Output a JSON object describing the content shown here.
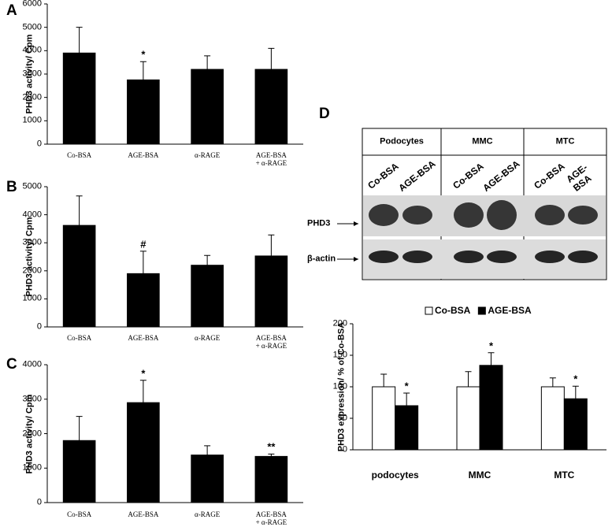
{
  "chart_data": [
    {
      "type": "bar",
      "panel": "A",
      "y_label": "PHD3 activity/ Cpm",
      "categories": [
        "Co-BSA",
        "AGE-BSA",
        "α-RAGE",
        "AGE-BSA\n+ α-RAGE"
      ],
      "series": [
        {
          "color": "#000000",
          "values": [
            3900,
            2750,
            3200,
            3200
          ],
          "errors": [
            1100,
            780,
            580,
            900
          ],
          "annotations": [
            null,
            "*",
            null,
            null
          ]
        }
      ],
      "ylim": [
        0,
        6000
      ],
      "yticks": [
        0,
        1000,
        2000,
        3000,
        4000,
        5000,
        6000
      ]
    },
    {
      "type": "bar",
      "panel": "B",
      "y_label": "PHD3 activity/ Cpm",
      "categories": [
        "Co-BSA",
        "AGE-BSA",
        "α-RAGE",
        "AGE-BSA\n+ α-RAGE"
      ],
      "series": [
        {
          "color": "#000000",
          "values": [
            3620,
            1900,
            2200,
            2530
          ],
          "errors": [
            1050,
            800,
            350,
            750
          ],
          "annotations": [
            null,
            "#",
            null,
            null
          ]
        }
      ],
      "ylim": [
        0,
        5000
      ],
      "yticks": [
        0,
        1000,
        2000,
        3000,
        4000,
        5000
      ]
    },
    {
      "type": "bar",
      "panel": "C",
      "y_label": "PHD3 activity/ Cpm",
      "categories": [
        "Co-BSA",
        "AGE-BSA",
        "α-RAGE",
        "AGE-BSA\n+ α-RAGE"
      ],
      "series": [
        {
          "color": "#000000",
          "values": [
            1800,
            2900,
            1380,
            1340
          ],
          "errors": [
            700,
            650,
            270,
            70
          ],
          "annotations": [
            null,
            "*",
            null,
            "**"
          ]
        }
      ],
      "ylim": [
        0,
        4000
      ],
      "yticks": [
        0,
        1000,
        2000,
        3000,
        4000
      ]
    },
    {
      "type": "bar",
      "panel": "D",
      "y_label": "PHD3 expression/ % of Co-BSA",
      "categories": [
        "podocytes",
        "MMC",
        "MTC"
      ],
      "series": [
        {
          "name": "Co-BSA",
          "color": "#ffffff",
          "values": [
            100,
            100,
            100
          ],
          "errors": [
            20,
            24,
            14
          ],
          "annotations": [
            null,
            null,
            null
          ]
        },
        {
          "name": "AGE-BSA",
          "color": "#000000",
          "values": [
            70,
            134,
            81
          ],
          "errors": [
            20,
            20,
            20
          ],
          "annotations": [
            "*",
            "*",
            "*"
          ]
        }
      ],
      "ylim": [
        0,
        200
      ],
      "yticks": [
        0,
        50,
        100,
        150,
        200
      ],
      "legend": "top"
    }
  ],
  "blot": {
    "columns": [
      "Podocytes",
      "MMC",
      "MTC"
    ],
    "lanes": [
      "Co-BSA",
      "AGE-BSA"
    ],
    "rows": [
      "PHD3",
      "β-actin"
    ]
  }
}
